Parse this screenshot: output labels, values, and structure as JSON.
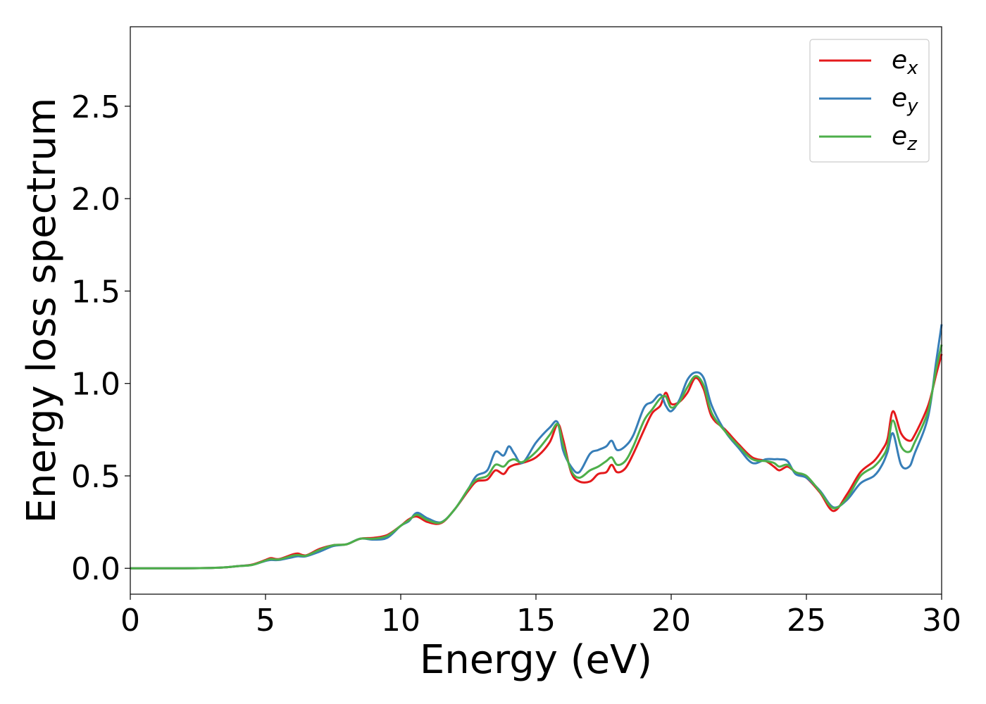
{
  "chart_data": {
    "type": "line",
    "title": "",
    "xlabel": "Energy (eV)",
    "ylabel": "Energy loss spectrum",
    "xlim": [
      0,
      30
    ],
    "ylim": [
      -0.14,
      2.93
    ],
    "grid": false,
    "legend_position": "top-right",
    "x_ticks": [
      0,
      5,
      10,
      15,
      20,
      25,
      30
    ],
    "x_tick_labels": [
      "0",
      "5",
      "10",
      "15",
      "20",
      "25",
      "30"
    ],
    "y_ticks": [
      0.0,
      0.5,
      1.0,
      1.5,
      2.0,
      2.5
    ],
    "y_tick_labels": [
      "0.0",
      "0.5",
      "1.0",
      "1.5",
      "2.0",
      "2.5"
    ],
    "series": [
      {
        "name": "e_x",
        "legend_base": "e",
        "legend_sub": "x",
        "color": "#e41a1c",
        "x": [
          0,
          1,
          2,
          3,
          3.5,
          4,
          4.5,
          5,
          5.2,
          5.5,
          6,
          6.2,
          6.5,
          7,
          7.5,
          8,
          8.5,
          9,
          9.5,
          10,
          10.3,
          10.6,
          11,
          11.5,
          12,
          12.5,
          12.8,
          13.2,
          13.5,
          13.8,
          14,
          14.2,
          14.5,
          15,
          15.5,
          15.8,
          16,
          16.3,
          16.6,
          17,
          17.3,
          17.6,
          17.8,
          18,
          18.3,
          18.6,
          19,
          19.3,
          19.6,
          19.8,
          20,
          20.3,
          20.6,
          20.9,
          21.2,
          21.5,
          22,
          22.5,
          23,
          23.5,
          23.8,
          24,
          24.3,
          24.6,
          25,
          25.5,
          26,
          26.5,
          27,
          27.5,
          27.8,
          28,
          28.2,
          28.5,
          28.8,
          29,
          29.5,
          29.8,
          30
        ],
        "y": [
          0,
          0,
          0,
          0.002,
          0.005,
          0.012,
          0.02,
          0.045,
          0.055,
          0.05,
          0.075,
          0.08,
          0.07,
          0.105,
          0.125,
          0.13,
          0.16,
          0.165,
          0.18,
          0.23,
          0.265,
          0.28,
          0.25,
          0.245,
          0.32,
          0.42,
          0.47,
          0.48,
          0.53,
          0.51,
          0.545,
          0.56,
          0.57,
          0.6,
          0.68,
          0.78,
          0.7,
          0.52,
          0.47,
          0.47,
          0.51,
          0.52,
          0.56,
          0.52,
          0.54,
          0.62,
          0.75,
          0.84,
          0.88,
          0.95,
          0.89,
          0.9,
          0.95,
          1.03,
          0.97,
          0.82,
          0.75,
          0.67,
          0.6,
          0.58,
          0.55,
          0.53,
          0.55,
          0.52,
          0.49,
          0.41,
          0.31,
          0.4,
          0.52,
          0.58,
          0.64,
          0.7,
          0.85,
          0.73,
          0.69,
          0.72,
          0.88,
          1.05,
          1.16
        ]
      },
      {
        "name": "e_y",
        "legend_base": "e",
        "legend_sub": "y",
        "color": "#377eb8",
        "x": [
          0,
          1,
          2,
          3,
          3.5,
          4,
          4.5,
          5,
          5.2,
          5.5,
          6,
          6.2,
          6.5,
          7,
          7.5,
          8,
          8.5,
          9,
          9.5,
          10,
          10.3,
          10.6,
          11,
          11.5,
          12,
          12.5,
          12.8,
          13.2,
          13.5,
          13.8,
          14,
          14.2,
          14.5,
          15,
          15.5,
          15.8,
          16,
          16.3,
          16.6,
          17,
          17.3,
          17.6,
          17.8,
          18,
          18.3,
          18.6,
          19,
          19.3,
          19.6,
          19.8,
          20,
          20.3,
          20.6,
          20.9,
          21.2,
          21.5,
          22,
          22.5,
          23,
          23.5,
          23.8,
          24,
          24.3,
          24.6,
          25,
          25.5,
          26,
          26.5,
          27,
          27.5,
          27.8,
          28,
          28.2,
          28.5,
          28.8,
          29,
          29.5,
          29.8,
          30
        ],
        "y": [
          0,
          0,
          0,
          0.002,
          0.005,
          0.012,
          0.018,
          0.04,
          0.045,
          0.045,
          0.06,
          0.065,
          0.065,
          0.09,
          0.12,
          0.13,
          0.16,
          0.155,
          0.165,
          0.23,
          0.255,
          0.3,
          0.27,
          0.25,
          0.32,
          0.43,
          0.5,
          0.53,
          0.63,
          0.61,
          0.66,
          0.62,
          0.57,
          0.68,
          0.76,
          0.79,
          0.64,
          0.55,
          0.52,
          0.62,
          0.64,
          0.66,
          0.69,
          0.64,
          0.66,
          0.72,
          0.87,
          0.9,
          0.94,
          0.88,
          0.85,
          0.91,
          1.02,
          1.06,
          1.03,
          0.88,
          0.74,
          0.65,
          0.57,
          0.59,
          0.59,
          0.59,
          0.58,
          0.51,
          0.49,
          0.42,
          0.33,
          0.37,
          0.46,
          0.5,
          0.56,
          0.63,
          0.73,
          0.56,
          0.55,
          0.62,
          0.82,
          1.12,
          1.32
        ]
      },
      {
        "name": "e_z",
        "legend_base": "e",
        "legend_sub": "z",
        "color": "#4daf4a",
        "x": [
          0,
          1,
          2,
          3,
          3.5,
          4,
          4.5,
          5,
          5.2,
          5.5,
          6,
          6.2,
          6.5,
          7,
          7.5,
          8,
          8.5,
          9,
          9.5,
          10,
          10.3,
          10.6,
          11,
          11.5,
          12,
          12.5,
          12.8,
          13.2,
          13.5,
          13.8,
          14,
          14.2,
          14.5,
          15,
          15.5,
          15.8,
          16,
          16.3,
          16.6,
          17,
          17.3,
          17.6,
          17.8,
          18,
          18.3,
          18.6,
          19,
          19.3,
          19.6,
          19.8,
          20,
          20.3,
          20.6,
          20.9,
          21.2,
          21.5,
          22,
          22.5,
          23,
          23.5,
          23.8,
          24,
          24.3,
          24.6,
          25,
          25.5,
          26,
          26.5,
          27,
          27.5,
          27.8,
          28,
          28.2,
          28.5,
          28.8,
          29,
          29.5,
          29.8,
          30
        ],
        "y": [
          0,
          0,
          0,
          0.002,
          0.005,
          0.012,
          0.018,
          0.042,
          0.05,
          0.048,
          0.068,
          0.072,
          0.068,
          0.1,
          0.125,
          0.13,
          0.16,
          0.16,
          0.175,
          0.23,
          0.26,
          0.29,
          0.26,
          0.248,
          0.32,
          0.43,
          0.48,
          0.5,
          0.56,
          0.55,
          0.58,
          0.59,
          0.575,
          0.63,
          0.72,
          0.78,
          0.67,
          0.53,
          0.49,
          0.53,
          0.55,
          0.58,
          0.6,
          0.56,
          0.58,
          0.66,
          0.8,
          0.86,
          0.92,
          0.93,
          0.87,
          0.9,
          0.98,
          1.04,
          0.99,
          0.84,
          0.74,
          0.66,
          0.59,
          0.58,
          0.57,
          0.55,
          0.56,
          0.52,
          0.5,
          0.415,
          0.325,
          0.38,
          0.5,
          0.55,
          0.6,
          0.66,
          0.8,
          0.66,
          0.63,
          0.68,
          0.85,
          1.08,
          1.21
        ]
      }
    ]
  }
}
